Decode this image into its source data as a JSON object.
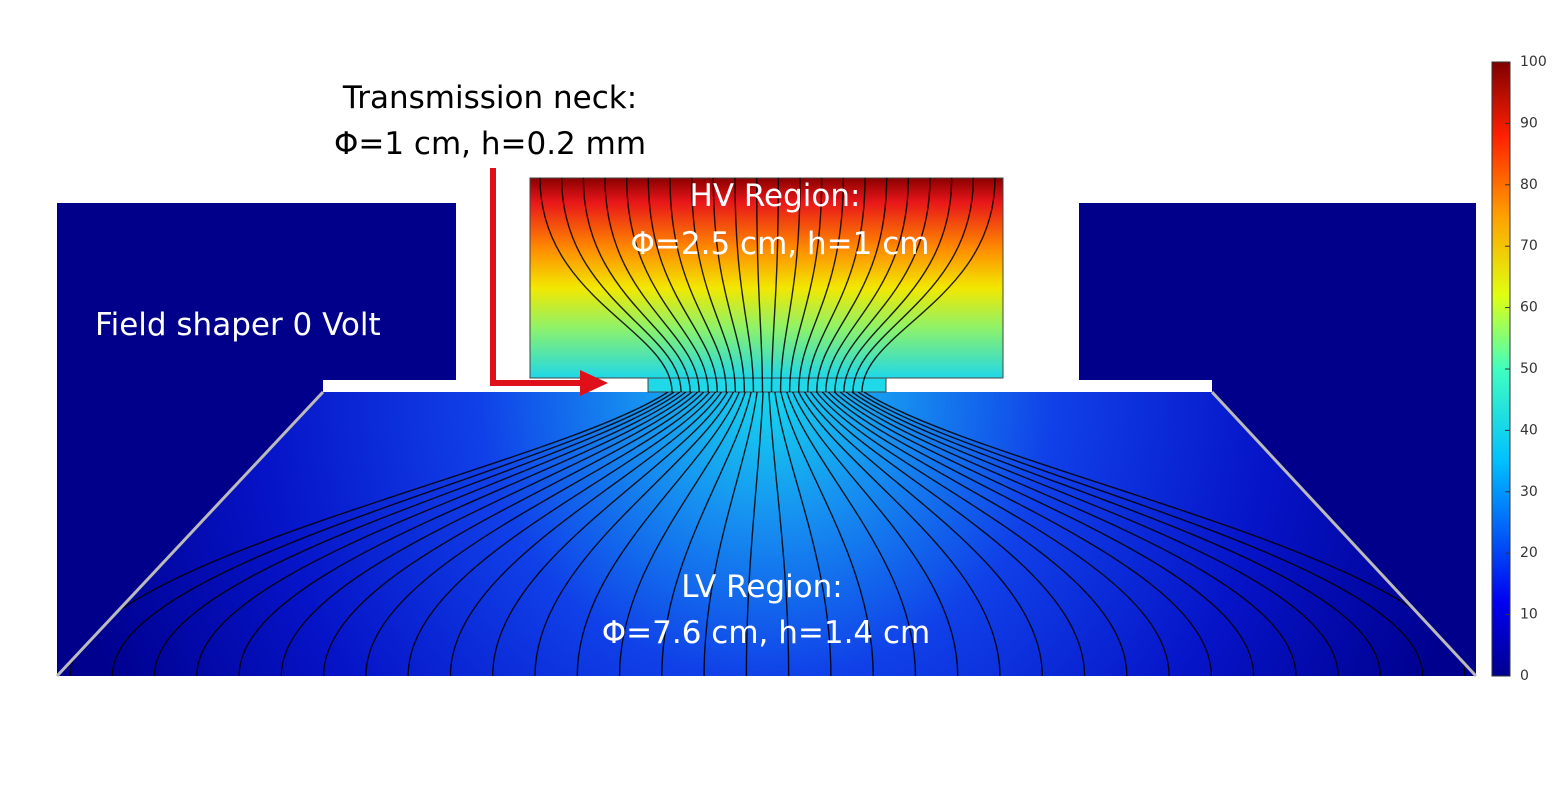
{
  "annotations": {
    "neck_title": "Transmission neck:",
    "neck_dims": "Φ=1 cm, h=0.2 mm",
    "hv_title": "HV Region:",
    "hv_dims": "Φ=2.5 cm, h=1 cm",
    "shaper": "Field shaper 0 Volt",
    "lv_title": "LV Region:",
    "lv_dims": "Φ=7.6 cm, h=1.4 cm"
  },
  "colorbar": {
    "limits": [
      0,
      100
    ],
    "ticks": [
      0,
      10,
      20,
      30,
      40,
      50,
      60,
      70,
      80,
      90,
      100
    ]
  }
}
